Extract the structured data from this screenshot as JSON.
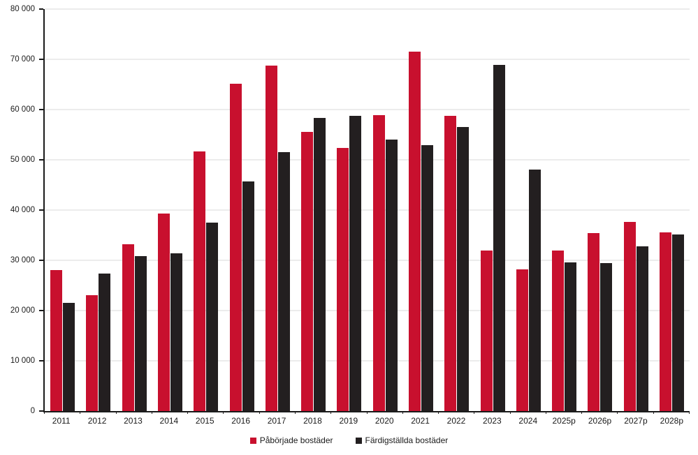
{
  "chart_data": {
    "type": "bar",
    "title": "",
    "xlabel": "",
    "ylabel": "",
    "categories": [
      "2011",
      "2012",
      "2013",
      "2014",
      "2015",
      "2016",
      "2017",
      "2018",
      "2019",
      "2020",
      "2021",
      "2022",
      "2023",
      "2024",
      "2025p",
      "2026p",
      "2027p",
      "2028p"
    ],
    "series": [
      {
        "name": "Påbörjade bostäder",
        "color": "#c8102e",
        "values": [
          28000,
          23100,
          33200,
          39300,
          51600,
          65100,
          68700,
          55500,
          52300,
          58900,
          71500,
          58800,
          31900,
          28200,
          31900,
          35400,
          37600,
          35500
        ]
      },
      {
        "name": "Färdigställda bostäder",
        "color": "#231f20",
        "values": [
          21500,
          27400,
          30800,
          31400,
          37500,
          45700,
          51500,
          58300,
          58700,
          54000,
          52900,
          56500,
          68900,
          48000,
          29600,
          29500,
          32800,
          35200
        ]
      }
    ],
    "ylim": [
      0,
      80000
    ],
    "ytick_step": 10000,
    "ytick_labels": [
      "0",
      "10 000",
      "20 000",
      "30 000",
      "40 000",
      "50 000",
      "60 000",
      "70 000",
      "80 000"
    ],
    "grid": true,
    "legend_position": "bottom",
    "axis_color": "#1a1a1a",
    "gridline_color": "#d9d9d9"
  }
}
